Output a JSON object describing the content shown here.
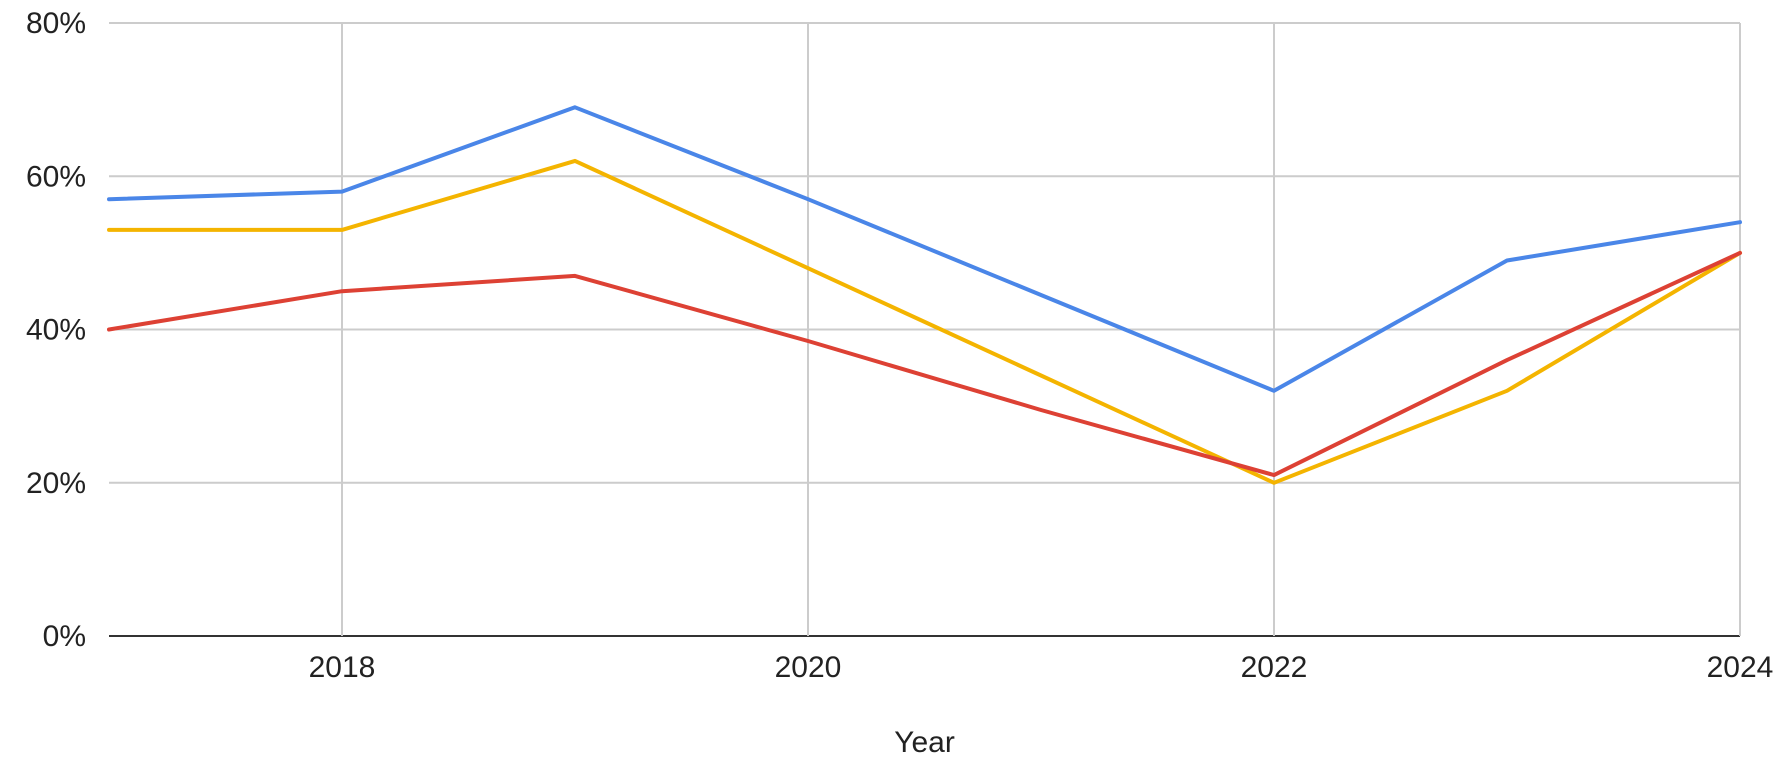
{
  "chart_data": {
    "type": "line",
    "title": "",
    "xlabel": "Year",
    "ylabel": "",
    "x": [
      2017,
      2018,
      2019,
      2020,
      2021,
      2022,
      2023,
      2024
    ],
    "xlim": [
      2017,
      2024
    ],
    "x_ticks": [
      "2018",
      "2020",
      "2022",
      "2024"
    ],
    "ylim": [
      0,
      80
    ],
    "y_ticks": [
      "0%",
      "20%",
      "40%",
      "60%",
      "80%"
    ],
    "grid": true,
    "legend": "none",
    "series": [
      {
        "color": "#4a86e8",
        "values": [
          57,
          58,
          69,
          57,
          44.5,
          32,
          49,
          54
        ]
      },
      {
        "color": "#f4b400",
        "values": [
          53,
          53,
          62,
          48,
          34,
          20,
          32,
          50
        ]
      },
      {
        "color": "#dd4134",
        "values": [
          40,
          45,
          47,
          38.5,
          29.5,
          21,
          36,
          50
        ]
      }
    ]
  }
}
